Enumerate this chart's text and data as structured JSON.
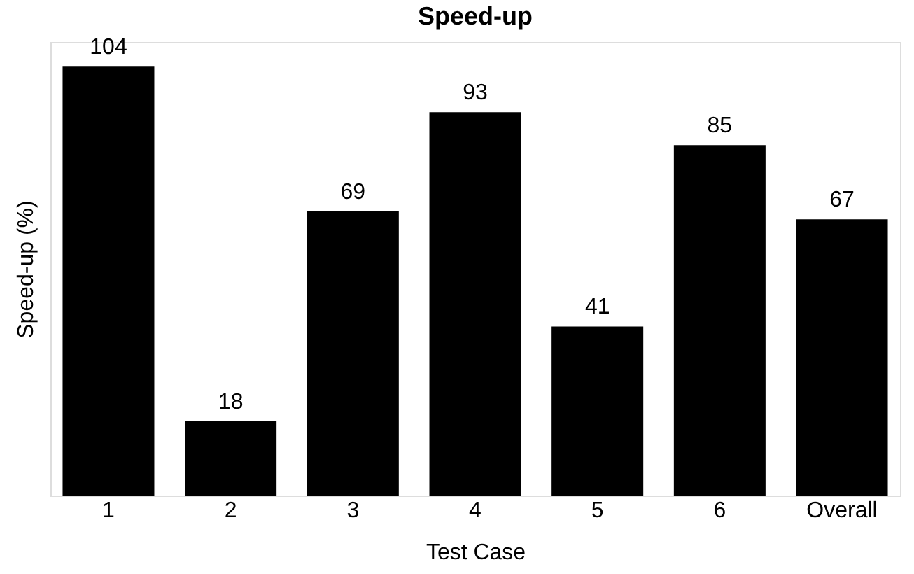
{
  "chart_data": {
    "type": "bar",
    "title": "Speed-up",
    "xlabel": "Test Case",
    "ylabel": "Speed-up (%)",
    "categories": [
      "1",
      "2",
      "3",
      "4",
      "5",
      "6",
      "Overall"
    ],
    "values": [
      104,
      18,
      69,
      93,
      41,
      85,
      67
    ],
    "color": "#000000",
    "data_labels": true,
    "ylim": [
      0,
      110
    ],
    "tick_labels": "x",
    "grid": false
  }
}
